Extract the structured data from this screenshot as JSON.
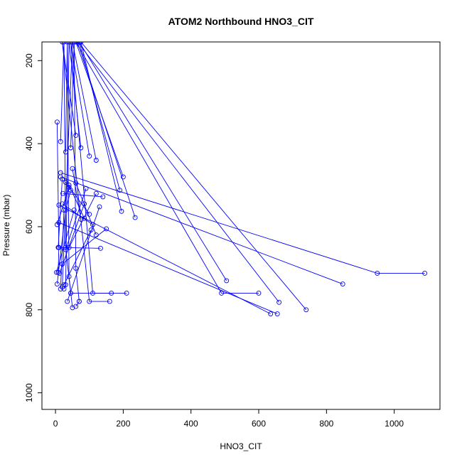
{
  "chart_data": {
    "type": "line",
    "title": "ATOM2 Northbound HNO3_CIT",
    "xlabel": "HNO3_CIT",
    "ylabel": "Pressure (mbar)",
    "xlim": [
      -40,
      1135
    ],
    "ylim": [
      1040,
      155
    ],
    "y_reversed": true,
    "xticks": [
      0,
      200,
      400,
      600,
      800,
      1000
    ],
    "yticks": [
      200,
      400,
      600,
      800,
      1000
    ],
    "series_color": "#0000ff",
    "marker": "open-circle",
    "series": [
      {
        "points": [
          [
            5,
            348
          ],
          [
            10,
            650
          ],
          [
            8,
            710
          ]
        ]
      },
      {
        "points": [
          [
            15,
            395
          ],
          [
            25,
            155
          ],
          [
            30,
            650
          ],
          [
            45,
            760
          ]
        ]
      },
      {
        "points": [
          [
            30,
            420
          ],
          [
            35,
            155
          ],
          [
            40,
            720
          ],
          [
            50,
            795
          ]
        ]
      },
      {
        "points": [
          [
            45,
            410
          ],
          [
            55,
            155
          ],
          [
            60,
            700
          ],
          [
            70,
            780
          ]
        ]
      },
      {
        "points": [
          [
            60,
            380
          ],
          [
            20,
            155
          ],
          [
            100,
            780
          ],
          [
            160,
            780
          ]
        ]
      },
      {
        "points": [
          [
            75,
            410
          ],
          [
            40,
            155
          ],
          [
            30,
            740
          ],
          [
            25,
            750
          ]
        ]
      },
      {
        "points": [
          [
            100,
            430
          ],
          [
            45,
            155
          ],
          [
            110,
            760
          ],
          [
            210,
            760
          ]
        ]
      },
      {
        "points": [
          [
            120,
            440
          ],
          [
            50,
            155
          ],
          [
            20,
            745
          ]
        ]
      },
      {
        "points": [
          [
            200,
            480
          ],
          [
            60,
            155
          ],
          [
            490,
            760
          ],
          [
            600,
            760
          ]
        ]
      },
      {
        "points": [
          [
            190,
            512
          ],
          [
            70,
            155
          ],
          [
            505,
            730
          ]
        ]
      },
      {
        "points": [
          [
            235,
            578
          ],
          [
            65,
            155
          ],
          [
            660,
            782
          ]
        ]
      },
      {
        "points": [
          [
            195,
            563
          ],
          [
            75,
            155
          ],
          [
            740,
            800
          ]
        ]
      },
      {
        "points": [
          [
            15,
            470
          ],
          [
            950,
            712
          ],
          [
            1090,
            712
          ]
        ]
      },
      {
        "points": [
          [
            15,
            480
          ],
          [
            848,
            738
          ]
        ]
      },
      {
        "points": [
          [
            10,
            548
          ],
          [
            635,
            810
          ]
        ]
      },
      {
        "points": [
          [
            10,
            590
          ],
          [
            655,
            810
          ]
        ]
      },
      {
        "points": [
          [
            10,
            650
          ],
          [
            133,
            652
          ]
        ]
      },
      {
        "points": [
          [
            20,
            690
          ],
          [
            150,
            605
          ]
        ]
      },
      {
        "points": [
          [
            25,
            740
          ],
          [
            105,
            608
          ]
        ]
      },
      {
        "points": [
          [
            35,
            780
          ],
          [
            130,
            552
          ]
        ]
      },
      {
        "points": [
          [
            45,
            760
          ],
          [
            165,
            760
          ]
        ]
      },
      {
        "points": [
          [
            60,
            792
          ],
          [
            70,
            780
          ]
        ]
      },
      {
        "points": [
          [
            8,
            650
          ],
          [
            20,
            485
          ]
        ]
      },
      {
        "points": [
          [
            5,
            738
          ],
          [
            30,
            560
          ],
          [
            45,
            512
          ]
        ]
      },
      {
        "points": [
          [
            3,
            710
          ],
          [
            55,
            560
          ]
        ]
      },
      {
        "points": [
          [
            12,
            712
          ],
          [
            85,
            545
          ]
        ]
      },
      {
        "points": [
          [
            30,
            655
          ],
          [
            90,
            508
          ]
        ]
      },
      {
        "points": [
          [
            40,
            650
          ],
          [
            120,
            520
          ]
        ]
      },
      {
        "points": [
          [
            22,
            520
          ],
          [
            140,
            528
          ]
        ]
      },
      {
        "points": [
          [
            30,
            493
          ],
          [
            100,
            570
          ]
        ]
      },
      {
        "points": [
          [
            50,
            460
          ],
          [
            75,
            582
          ]
        ]
      },
      {
        "points": [
          [
            40,
            500
          ],
          [
            85,
            580
          ]
        ]
      },
      {
        "points": [
          [
            20,
            545
          ],
          [
            110,
            595
          ]
        ]
      },
      {
        "points": [
          [
            60,
            495
          ],
          [
            120,
            620
          ]
        ]
      },
      {
        "points": [
          [
            5,
            595
          ],
          [
            40,
            505
          ]
        ]
      },
      {
        "points": [
          [
            15,
            750
          ],
          [
            25,
            560
          ]
        ]
      }
    ]
  }
}
